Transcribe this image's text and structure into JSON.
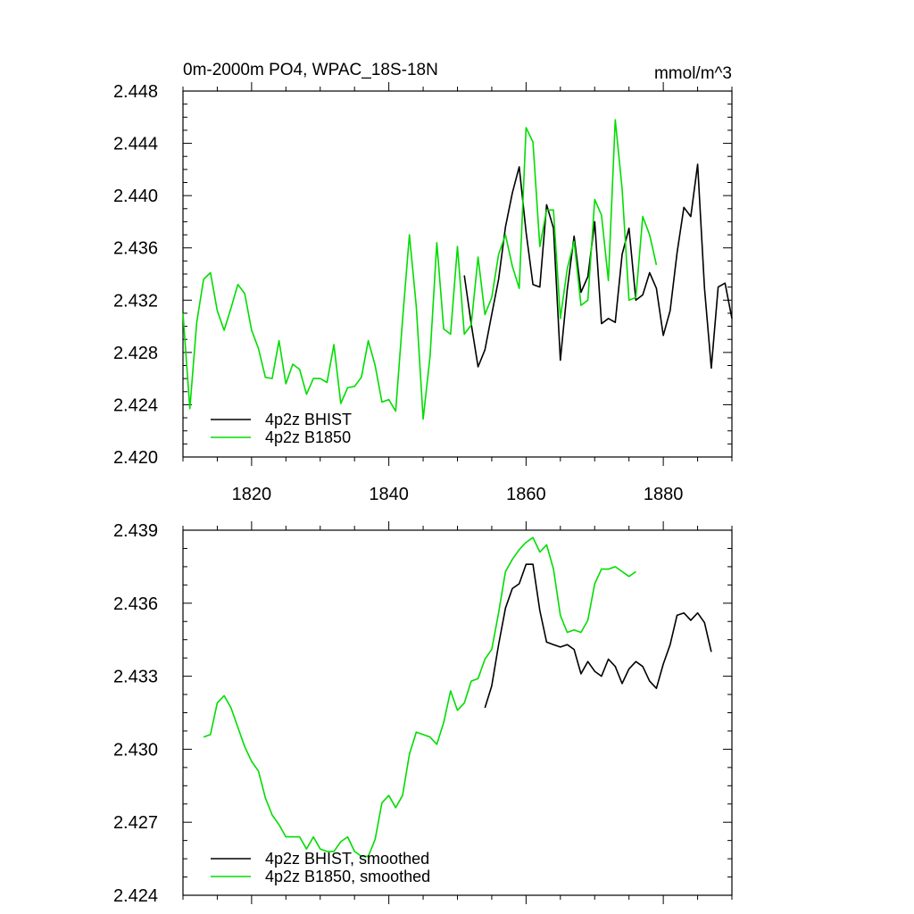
{
  "chart_data": [
    {
      "type": "line",
      "title_left": "0m-2000m PO4, WPAC_18S-18N",
      "title_right": "mmol/m^3",
      "xlim": [
        1810,
        1890
      ],
      "ylim": [
        2.42,
        2.448
      ],
      "x_ticks": [
        1820,
        1840,
        1860,
        1880
      ],
      "x_tick_labels": [
        "1820",
        "1840",
        "1860",
        "1880"
      ],
      "y_ticks": [
        2.42,
        2.424,
        2.428,
        2.432,
        2.436,
        2.44,
        2.444,
        2.448
      ],
      "y_tick_labels": [
        "2.420",
        "2.424",
        "2.428",
        "2.432",
        "2.436",
        "2.440",
        "2.444",
        "2.448"
      ],
      "legend": [
        "4p2z BHIST",
        "4p2z B1850"
      ],
      "series": [
        {
          "name": "4p2z BHIST",
          "color": "#000000",
          "x_start": 1851,
          "values": [
            2.4339,
            2.4302,
            2.4269,
            2.4282,
            2.4309,
            2.4336,
            2.4376,
            2.4402,
            2.4422,
            2.4372,
            2.4332,
            2.433,
            2.4393,
            2.4375,
            2.4274,
            2.4328,
            2.4369,
            2.4326,
            2.4338,
            2.438,
            2.4302,
            2.4306,
            2.4303,
            2.4355,
            2.4375,
            2.432,
            2.4324,
            2.4341,
            2.4329,
            2.4293,
            2.4312,
            2.4356,
            2.4391,
            2.4384,
            2.4424,
            2.4329,
            2.4268,
            2.433,
            2.4333,
            2.4306
          ]
        },
        {
          "name": "4p2z B1850",
          "color": "#00dd00",
          "x_start": 1810,
          "values": [
            2.431,
            2.4237,
            2.4303,
            2.4336,
            2.4341,
            2.4312,
            2.4297,
            2.4314,
            2.4332,
            2.4325,
            2.4297,
            2.4283,
            2.4261,
            2.426,
            2.4289,
            2.4256,
            2.4271,
            2.4267,
            2.4248,
            2.426,
            2.426,
            2.4257,
            2.4286,
            2.4241,
            2.4253,
            2.4254,
            2.4261,
            2.4289,
            2.427,
            2.4242,
            2.4244,
            2.4235,
            2.4305,
            2.437,
            2.4315,
            2.4229,
            2.4277,
            2.4364,
            2.4298,
            2.4294,
            2.4361,
            2.4294,
            2.4301,
            2.4353,
            2.4309,
            2.4322,
            2.4355,
            2.437,
            2.4346,
            2.4329,
            2.4452,
            2.4441,
            2.4361,
            2.4389,
            2.4389,
            2.4306,
            2.4344,
            2.4365,
            2.4316,
            2.432,
            2.4397,
            2.4385,
            2.4335,
            2.4458,
            2.4405,
            2.432,
            2.4322,
            2.4384,
            2.437,
            2.4347
          ]
        }
      ]
    },
    {
      "type": "line",
      "xlim": [
        1810,
        1890
      ],
      "ylim": [
        2.424,
        2.439
      ],
      "x_ticks": [
        1820,
        1840,
        1860,
        1880
      ],
      "y_ticks": [
        2.424,
        2.427,
        2.43,
        2.433,
        2.436,
        2.439
      ],
      "y_tick_labels": [
        "2.424",
        "2.427",
        "2.430",
        "2.433",
        "2.436",
        "2.439"
      ],
      "legend": [
        "4p2z BHIST, smoothed",
        "4p2z B1850, smoothed"
      ],
      "series": [
        {
          "name": "4p2z BHIST, smoothed",
          "color": "#000000",
          "x_start": 1854,
          "values": [
            2.4317,
            2.4326,
            2.4343,
            2.4358,
            2.4366,
            2.4368,
            2.4376,
            2.4376,
            2.4357,
            2.4344,
            2.4343,
            2.4342,
            2.4343,
            2.4341,
            2.4331,
            2.4336,
            2.4332,
            2.433,
            2.4337,
            2.4334,
            2.4327,
            2.4333,
            2.4336,
            2.4334,
            2.4328,
            2.4325,
            2.4335,
            2.4343,
            2.4355,
            2.4356,
            2.4353,
            2.4356,
            2.4352,
            2.434
          ]
        },
        {
          "name": "4p2z B1850, smoothed",
          "color": "#00dd00",
          "x_start": 1813,
          "values": [
            2.4305,
            2.4306,
            2.4319,
            2.4322,
            2.4317,
            2.4309,
            2.4301,
            2.4295,
            2.4291,
            2.428,
            2.4273,
            2.4269,
            2.4264,
            2.4264,
            2.4264,
            2.4259,
            2.4264,
            2.4259,
            2.4258,
            2.4258,
            2.4262,
            2.4264,
            2.4258,
            2.4256,
            2.4256,
            2.4263,
            2.4278,
            2.4281,
            2.4276,
            2.4281,
            2.4298,
            2.4307,
            2.4306,
            2.4305,
            2.4302,
            2.4311,
            2.4324,
            2.4316,
            2.4319,
            2.4328,
            2.4329,
            2.4337,
            2.4341,
            2.4356,
            2.4373,
            2.4378,
            2.4382,
            2.4385,
            2.4387,
            2.4381,
            2.4384,
            2.4374,
            2.4355,
            2.4348,
            2.4349,
            2.4348,
            2.4353,
            2.4368,
            2.4374,
            2.4374,
            2.4375,
            2.4373,
            2.4371,
            2.4373
          ]
        }
      ]
    }
  ]
}
